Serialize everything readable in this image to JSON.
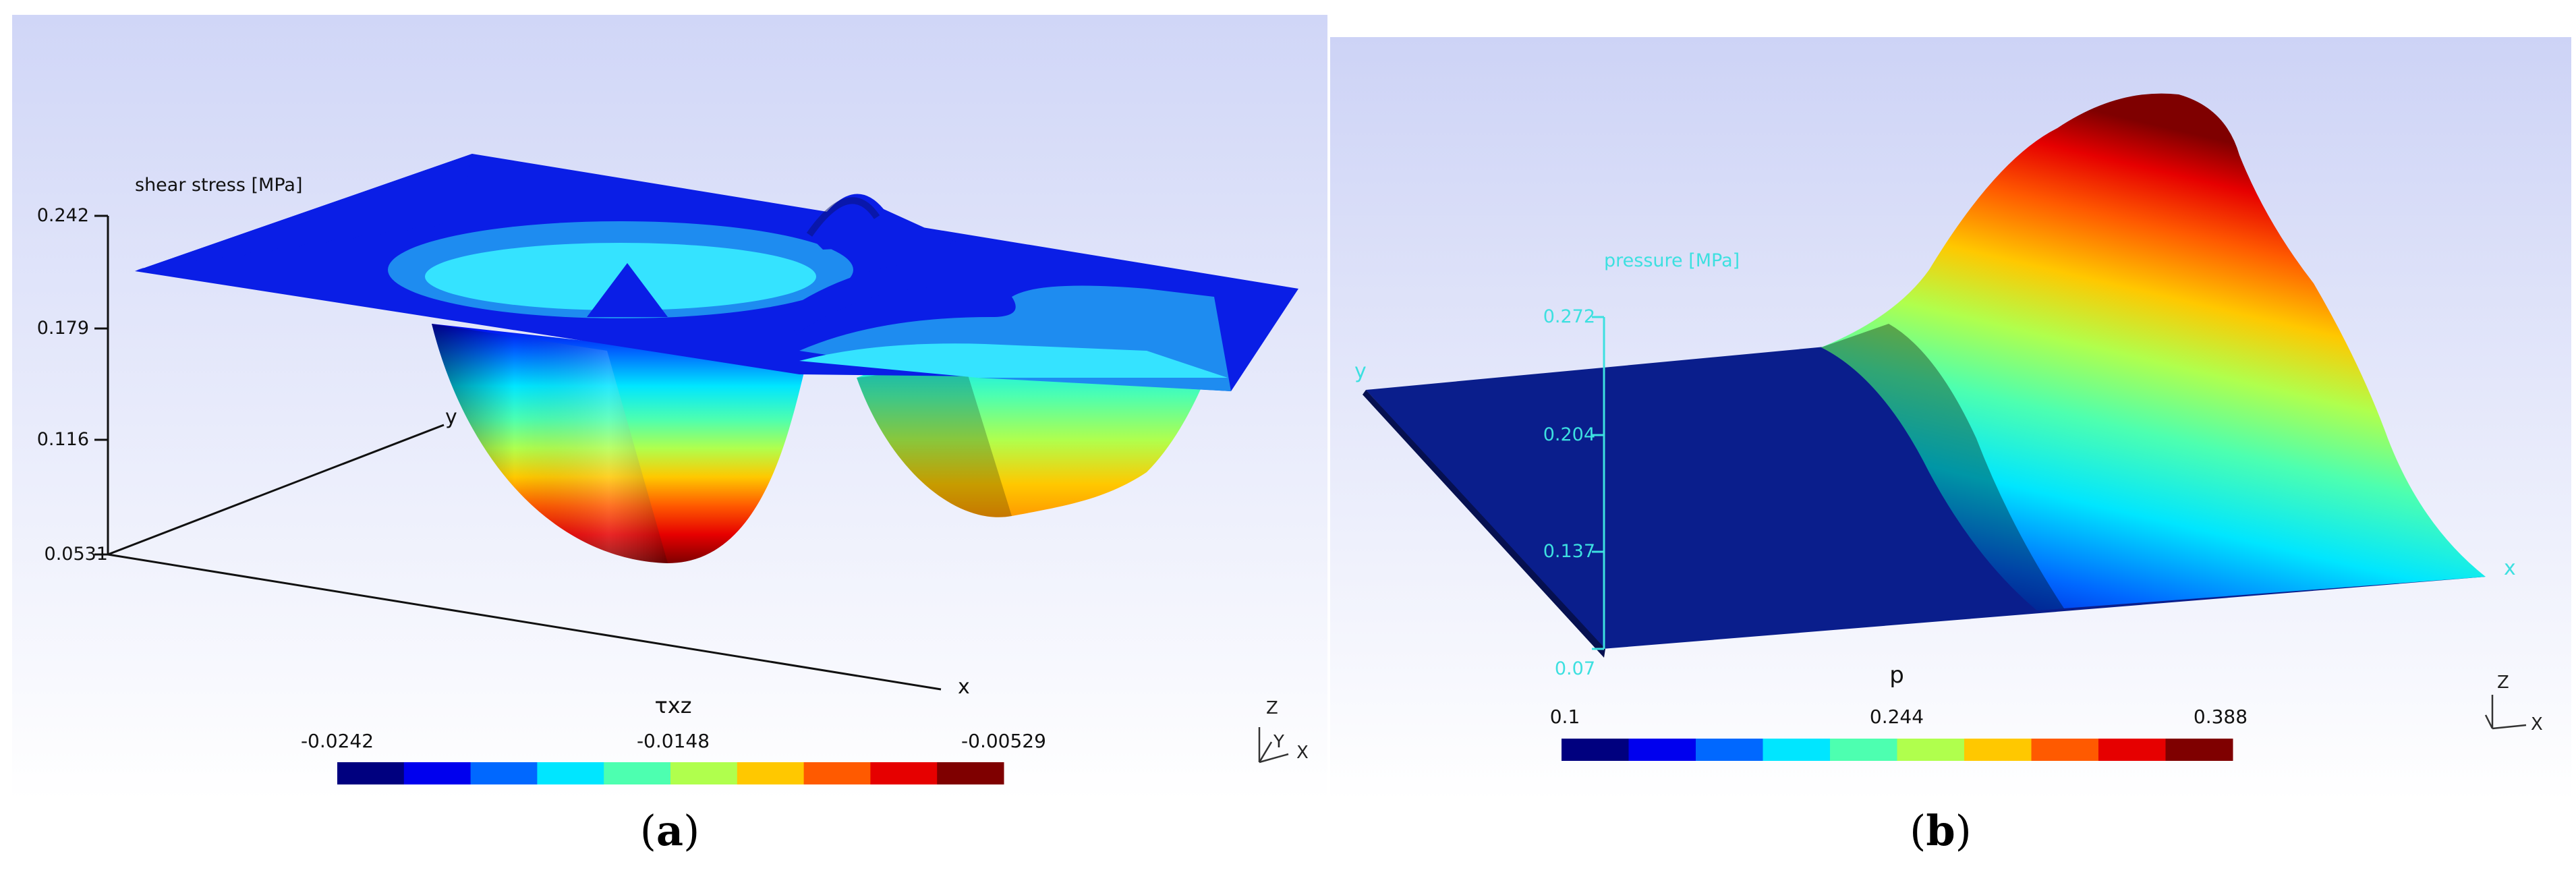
{
  "panel_a": {
    "axis_title": "shear stress [MPa]",
    "z_ticks": [
      "0.242",
      "0.179",
      "0.116",
      "0.0531"
    ],
    "x_axis_label": "x",
    "y_axis_label": "y",
    "colorbar": {
      "title": "τxz",
      "min_label": "-0.0242",
      "mid_label": "-0.0148",
      "max_label": "-0.00529",
      "colors": [
        "#00007f",
        "#0000ee",
        "#0068ff",
        "#00e6ff",
        "#4dffb0",
        "#b0ff4d",
        "#ffc800",
        "#ff5a00",
        "#e60000",
        "#7f0000"
      ]
    },
    "triad": {
      "z": "Z",
      "y": "Y",
      "x": "X"
    },
    "caption_letter": "a"
  },
  "panel_b": {
    "axis_title": "pressure [MPa]",
    "z_ticks": [
      "0.272",
      "0.204",
      "0.137",
      "0.07"
    ],
    "x_axis_label": "x",
    "y_axis_label": "y",
    "colorbar": {
      "title": "p",
      "min_label": "0.1",
      "mid_label": "0.244",
      "max_label": "0.388",
      "colors": [
        "#00007f",
        "#0000ee",
        "#0068ff",
        "#00e6ff",
        "#4dffb0",
        "#b0ff4d",
        "#ffc800",
        "#ff5a00",
        "#e60000",
        "#7f0000"
      ]
    },
    "triad": {
      "z": "Z",
      "x": "X"
    },
    "caption_letter": "b"
  },
  "colors": {
    "background_top": "#d4d9f7",
    "background_bottom": "#ffffff",
    "surface_blue": "#0a1ee6",
    "deep_blue": "#00007f",
    "axis_cyan": "#3de0e0"
  }
}
